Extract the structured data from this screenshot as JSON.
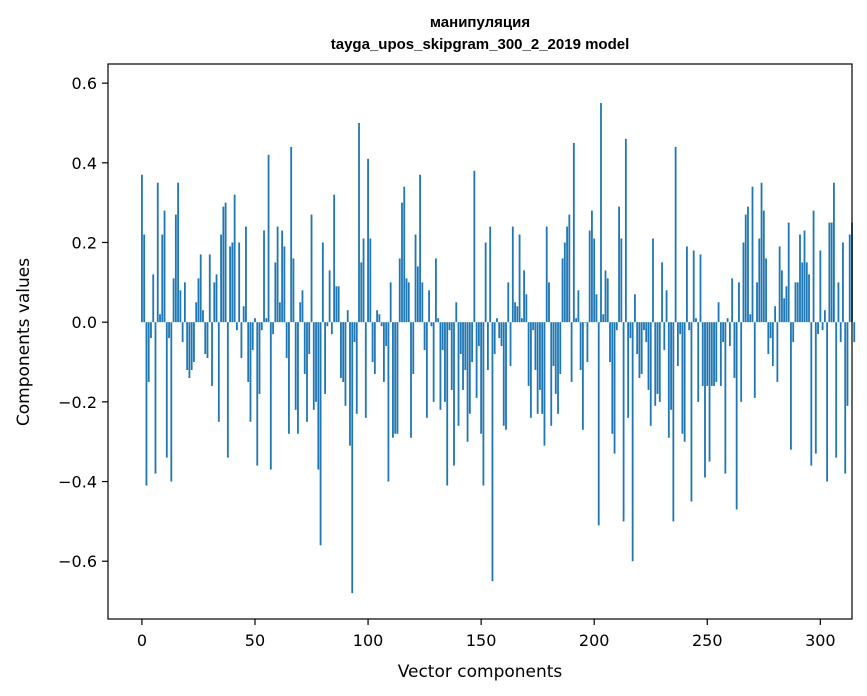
{
  "chart_data": {
    "type": "bar",
    "title_line1": "манипуляция",
    "title_line2": "tayga_upos_skipgram_300_2_2019 model",
    "xlabel": "Vector components",
    "ylabel": "Components values",
    "xlim": [
      -15,
      314
    ],
    "ylim": [
      -0.745,
      0.648
    ],
    "xticks": [
      0,
      50,
      100,
      150,
      200,
      250,
      300
    ],
    "xtick_labels": [
      "0",
      "50",
      "100",
      "150",
      "200",
      "250",
      "300"
    ],
    "yticks": [
      -0.6,
      -0.4,
      -0.2,
      0.0,
      0.2,
      0.4,
      0.6
    ],
    "ytick_labels": [
      "−0.6",
      "−0.4",
      "−0.2",
      "0.0",
      "0.2",
      "0.4",
      "0.6"
    ],
    "bar_color": "#1f77b4",
    "values": [
      0.37,
      0.22,
      -0.41,
      -0.15,
      -0.04,
      0.12,
      -0.38,
      0.35,
      0.02,
      0.22,
      0.28,
      -0.34,
      -0.04,
      -0.4,
      0.11,
      0.27,
      0.35,
      0.08,
      -0.05,
      0.1,
      -0.12,
      -0.14,
      -0.12,
      -0.1,
      0.05,
      0.11,
      0.17,
      0.03,
      -0.08,
      -0.09,
      0.17,
      -0.16,
      0.1,
      0.12,
      -0.25,
      0.22,
      0.29,
      0.3,
      -0.34,
      0.19,
      0.2,
      0.32,
      -0.02,
      0.2,
      -0.09,
      0.04,
      0.24,
      -0.15,
      -0.25,
      -0.07,
      0.01,
      -0.36,
      -0.18,
      -0.02,
      0.23,
      0.01,
      0.42,
      -0.37,
      -0.03,
      0.15,
      0.24,
      0.05,
      0.23,
      0.19,
      -0.09,
      -0.28,
      0.44,
      0.16,
      -0.22,
      -0.28,
      0.05,
      0.08,
      -0.13,
      -0.25,
      -0.08,
      0.27,
      -0.22,
      -0.2,
      -0.37,
      -0.56,
      0.2,
      -0.18,
      -0.01,
      0.13,
      -0.03,
      0.32,
      0.09,
      0.09,
      -0.14,
      -0.15,
      -0.21,
      0.03,
      -0.31,
      -0.68,
      -0.05,
      -0.23,
      0.5,
      0.15,
      0.21,
      -0.24,
      0.41,
      0.21,
      -0.1,
      -0.13,
      0.03,
      0.02,
      -0.01,
      -0.15,
      -0.06,
      -0.4,
      0.1,
      -0.29,
      -0.28,
      -0.28,
      0.16,
      0.3,
      0.34,
      0.11,
      0.1,
      -0.29,
      -0.13,
      0.22,
      0.14,
      0.37,
      0.1,
      -0.07,
      -0.24,
      0.08,
      -0.01,
      -0.2,
      0.16,
      0.01,
      -0.22,
      -0.07,
      -0.2,
      -0.41,
      -0.02,
      -0.17,
      -0.36,
      0.05,
      -0.26,
      -0.08,
      -0.17,
      -0.12,
      -0.3,
      -0.23,
      -0.1,
      0.38,
      -0.19,
      -0.06,
      -0.28,
      -0.41,
      0.2,
      -0.12,
      0.24,
      -0.65,
      -0.08,
      0.01,
      -0.04,
      -0.06,
      -0.26,
      -0.27,
      0.1,
      -0.11,
      0.24,
      0.05,
      0.04,
      0.22,
      0.01,
      0.13,
      0.07,
      -0.16,
      -0.24,
      -0.02,
      -0.12,
      -0.23,
      -0.17,
      -0.23,
      -0.31,
      0.24,
      0.1,
      -0.26,
      -0.11,
      -0.18,
      -0.23,
      -0.13,
      0.16,
      0.2,
      0.24,
      0.27,
      -0.15,
      0.45,
      0.01,
      0.08,
      -0.12,
      -0.27,
      0.0,
      -0.1,
      0.23,
      0.28,
      0.21,
      0.07,
      -0.51,
      0.55,
      0.02,
      0.13,
      0.11,
      -0.1,
      -0.28,
      -0.33,
      -0.02,
      0.29,
      0.21,
      -0.5,
      0.46,
      -0.24,
      -0.04,
      -0.6,
      0.07,
      -0.08,
      -0.14,
      -0.13,
      -0.02,
      -0.05,
      -0.17,
      -0.26,
      0.21,
      -0.21,
      -0.18,
      -0.2,
      0.15,
      -0.07,
      0.08,
      -0.29,
      -0.22,
      -0.5,
      0.44,
      -0.11,
      -0.03,
      -0.28,
      -0.3,
      0.19,
      -0.02,
      -0.45,
      0.18,
      0.01,
      -0.2,
      0.17,
      -0.16,
      -0.39,
      -0.16,
      -0.35,
      -0.16,
      -0.16,
      -0.15,
      0.05,
      -0.16,
      -0.05,
      -0.38,
      0.01,
      -0.06,
      0.11,
      -0.14,
      -0.47,
      0.1,
      -0.2,
      0.2,
      0.27,
      0.29,
      0.02,
      0.34,
      -0.19,
      0.1,
      0.21,
      0.35,
      0.28,
      0.16,
      -0.08,
      -0.04,
      -0.11,
      0.04,
      -0.15,
      0.19,
      0.13,
      0.06,
      0.09,
      0.25,
      -0.32,
      -0.05,
      0.1,
      0.1,
      0.22,
      0.15,
      0.23,
      0.15,
      0.12,
      -0.36,
      0.28,
      -0.33,
      -0.03,
      0.18,
      -0.02,
      0.03,
      -0.4,
      0.25,
      0.25,
      0.35,
      -0.34,
      0.1,
      -0.05,
      0.2,
      -0.38,
      -0.21,
      0.22,
      0.25,
      -0.05
    ]
  }
}
